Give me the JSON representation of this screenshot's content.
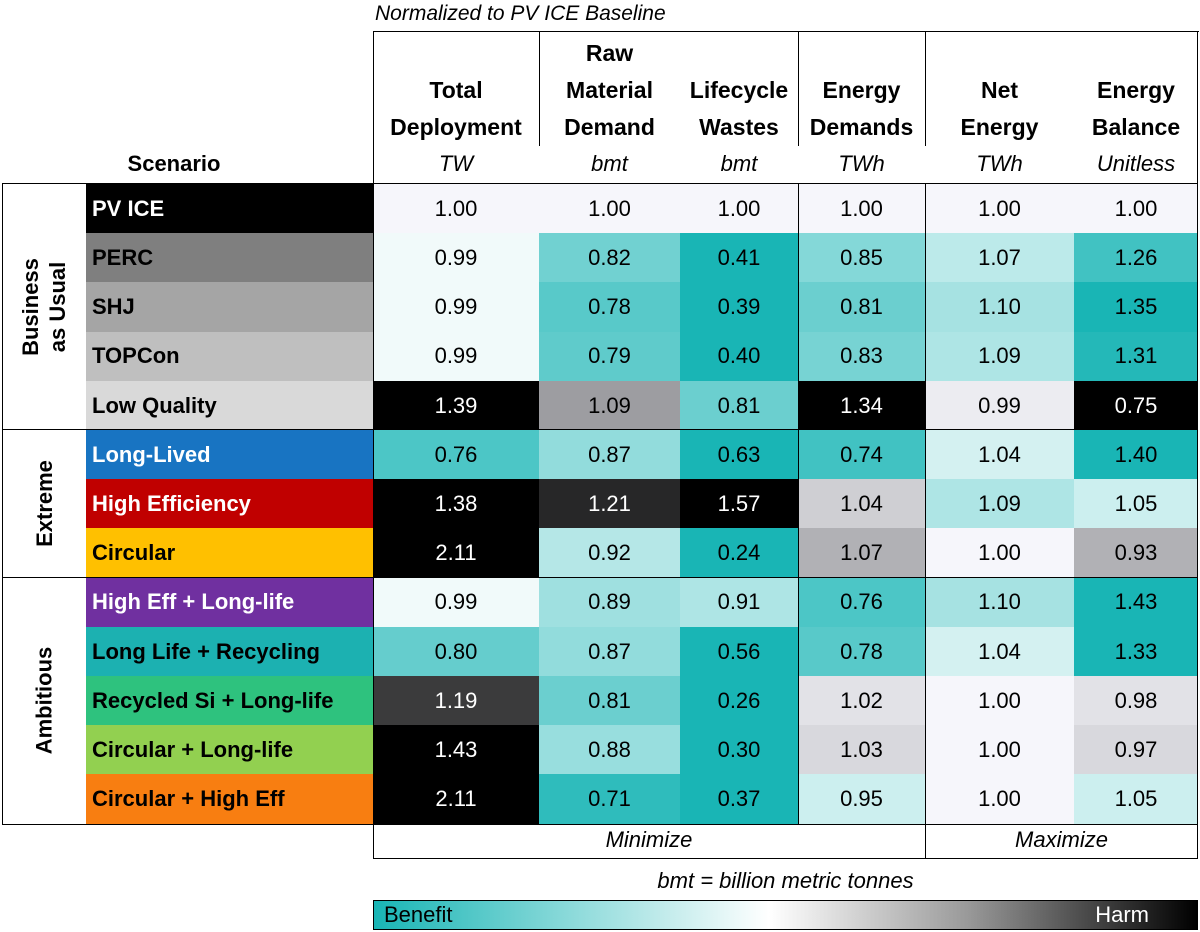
{
  "chart_data": {
    "type": "table",
    "title": "Normalized to PV ICE Baseline",
    "scenario_header": "Scenario",
    "columns": [
      {
        "header": [
          "Total",
          "Deployment"
        ],
        "unit": "TW",
        "goal": "Minimize"
      },
      {
        "header": [
          "Raw",
          "Material",
          "Demand"
        ],
        "unit": "bmt",
        "goal": "Minimize"
      },
      {
        "header": [
          "Lifecycle",
          "Wastes"
        ],
        "unit": "bmt",
        "goal": "Minimize"
      },
      {
        "header": [
          "Energy",
          "Demands"
        ],
        "unit": "TWh",
        "goal": "Minimize"
      },
      {
        "header": [
          "Net",
          "Energy"
        ],
        "unit": "TWh",
        "goal": "Maximize"
      },
      {
        "header": [
          "Energy",
          "Balance"
        ],
        "unit": "Unitless",
        "goal": "Maximize"
      }
    ],
    "groups": [
      {
        "label": [
          "Business",
          "as Usual"
        ],
        "rows": [
          0,
          1,
          2,
          3,
          4
        ]
      },
      {
        "label": [
          "Extreme"
        ],
        "rows": [
          5,
          6,
          7
        ]
      },
      {
        "label": [
          "Ambitious"
        ],
        "rows": [
          8,
          9,
          10,
          11,
          12
        ]
      }
    ],
    "rows": [
      {
        "scenario": "PV ICE",
        "color": "#000000",
        "text_color": "#ffffff",
        "values": [
          1.0,
          1.0,
          1.0,
          1.0,
          1.0,
          1.0
        ]
      },
      {
        "scenario": "PERC",
        "color": "#7f7f7f",
        "text_color": "#000000",
        "values": [
          0.99,
          0.82,
          0.41,
          0.85,
          1.07,
          1.26
        ]
      },
      {
        "scenario": "SHJ",
        "color": "#a5a5a5",
        "text_color": "#000000",
        "values": [
          0.99,
          0.78,
          0.39,
          0.81,
          1.1,
          1.35
        ]
      },
      {
        "scenario": "TOPCon",
        "color": "#bfbfbf",
        "text_color": "#000000",
        "values": [
          0.99,
          0.79,
          0.4,
          0.83,
          1.09,
          1.31
        ]
      },
      {
        "scenario": "Low Quality",
        "color": "#d9d9d9",
        "text_color": "#000000",
        "values": [
          1.39,
          1.09,
          0.81,
          1.34,
          0.99,
          0.75
        ]
      },
      {
        "scenario": "Long-Lived",
        "color": "#1874c2",
        "text_color": "#ffffff",
        "values": [
          0.76,
          0.87,
          0.63,
          0.74,
          1.04,
          1.4
        ]
      },
      {
        "scenario": "High Efficiency",
        "color": "#c00000",
        "text_color": "#ffffff",
        "values": [
          1.38,
          1.21,
          1.57,
          1.04,
          1.09,
          1.05
        ]
      },
      {
        "scenario": "Circular",
        "color": "#ffc000",
        "text_color": "#000000",
        "values": [
          2.11,
          0.92,
          0.24,
          1.07,
          1.0,
          0.93
        ]
      },
      {
        "scenario": "High Eff + Long-life",
        "color": "#7030a0",
        "text_color": "#ffffff",
        "values": [
          0.99,
          0.89,
          0.91,
          0.76,
          1.1,
          1.43
        ]
      },
      {
        "scenario": "Long Life + Recycling",
        "color": "#1cb1b1",
        "text_color": "#000000",
        "values": [
          0.8,
          0.87,
          0.56,
          0.78,
          1.04,
          1.33
        ]
      },
      {
        "scenario": "Recycled Si + Long-life",
        "color": "#2ec27e",
        "text_color": "#000000",
        "values": [
          1.19,
          0.81,
          0.26,
          1.02,
          1.0,
          0.98
        ]
      },
      {
        "scenario": "Circular + Long-life",
        "color": "#92d050",
        "text_color": "#000000",
        "values": [
          1.43,
          0.88,
          0.3,
          1.03,
          1.0,
          0.97
        ]
      },
      {
        "scenario": "Circular + High Eff",
        "color": "#f87e11",
        "text_color": "#000000",
        "values": [
          2.11,
          0.71,
          0.37,
          0.95,
          1.0,
          1.05
        ]
      }
    ],
    "footer": {
      "minimize_label": "Minimize",
      "maximize_label": "Maximize"
    },
    "note": "bmt = billion metric tonnes",
    "legend": {
      "low_label": "Benefit",
      "high_label": "Harm",
      "colors": {
        "benefit": "#19b5b5",
        "neutral": "#ffffff",
        "harm": "#000000"
      }
    }
  }
}
